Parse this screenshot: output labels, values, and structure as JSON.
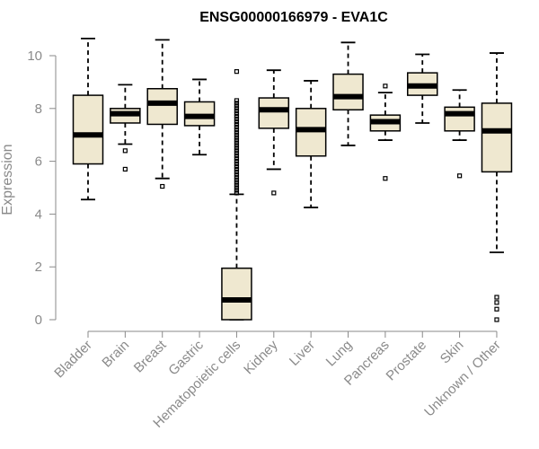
{
  "chart_data": {
    "type": "boxplot",
    "title": "ENSG00000166979 - EVA1C",
    "xlabel": "",
    "ylabel": "Expression",
    "ylim": [
      0,
      10.7
    ],
    "yticks": [
      0,
      2,
      4,
      6,
      8,
      10
    ],
    "box_color": "#efe8d0",
    "categories": [
      "Bladder",
      "Brain",
      "Breast",
      "Gastric",
      "Hematopoietic cells",
      "Kidney",
      "Liver",
      "Lung",
      "Pancreas",
      "Prostate",
      "Skin",
      "Unknown / Other"
    ],
    "boxes": [
      {
        "category": "Bladder",
        "whisker_low": 4.55,
        "q1": 5.9,
        "median": 7.0,
        "q3": 8.5,
        "whisker_high": 10.65,
        "outliers": []
      },
      {
        "category": "Brain",
        "whisker_low": 6.65,
        "q1": 7.45,
        "median": 7.8,
        "q3": 8.0,
        "whisker_high": 8.9,
        "outliers": [
          6.4,
          5.7
        ]
      },
      {
        "category": "Breast",
        "whisker_low": 5.35,
        "q1": 7.4,
        "median": 8.2,
        "q3": 8.75,
        "whisker_high": 10.6,
        "outliers": [
          5.05
        ]
      },
      {
        "category": "Gastric",
        "whisker_low": 6.25,
        "q1": 7.35,
        "median": 7.7,
        "q3": 8.25,
        "whisker_high": 9.1,
        "outliers": []
      },
      {
        "category": "Hematopoietic cells",
        "whisker_low": 0.0,
        "q1": 0.0,
        "median": 0.75,
        "q3": 1.95,
        "whisker_high": 4.75,
        "outliers": [
          4.8,
          4.9,
          5.0,
          5.1,
          5.2,
          5.3,
          5.4,
          5.5,
          5.6,
          5.7,
          5.8,
          5.9,
          6.0,
          6.1,
          6.2,
          6.3,
          6.4,
          6.5,
          6.6,
          6.7,
          6.8,
          6.9,
          7.0,
          7.1,
          7.2,
          7.3,
          7.4,
          7.5,
          7.6,
          7.7,
          7.8,
          7.9,
          8.0,
          8.1,
          8.2,
          8.3,
          9.4
        ]
      },
      {
        "category": "Kidney",
        "whisker_low": 5.7,
        "q1": 7.25,
        "median": 7.95,
        "q3": 8.4,
        "whisker_high": 9.45,
        "outliers": [
          4.8
        ]
      },
      {
        "category": "Liver",
        "whisker_low": 4.25,
        "q1": 6.2,
        "median": 7.2,
        "q3": 8.0,
        "whisker_high": 9.05,
        "outliers": []
      },
      {
        "category": "Lung",
        "whisker_low": 6.6,
        "q1": 7.95,
        "median": 8.45,
        "q3": 9.3,
        "whisker_high": 10.5,
        "outliers": []
      },
      {
        "category": "Pancreas",
        "whisker_low": 6.8,
        "q1": 7.15,
        "median": 7.5,
        "q3": 7.75,
        "whisker_high": 8.6,
        "outliers": [
          8.85,
          5.35
        ]
      },
      {
        "category": "Prostate",
        "whisker_low": 7.45,
        "q1": 8.5,
        "median": 8.85,
        "q3": 9.35,
        "whisker_high": 10.05,
        "outliers": []
      },
      {
        "category": "Skin",
        "whisker_low": 6.8,
        "q1": 7.15,
        "median": 7.8,
        "q3": 8.05,
        "whisker_high": 8.7,
        "outliers": [
          5.45
        ]
      },
      {
        "category": "Unknown / Other",
        "whisker_low": 2.55,
        "q1": 5.6,
        "median": 7.15,
        "q3": 8.2,
        "whisker_high": 10.1,
        "outliers": [
          0.85,
          0.65,
          0.4,
          0.0
        ]
      }
    ]
  }
}
